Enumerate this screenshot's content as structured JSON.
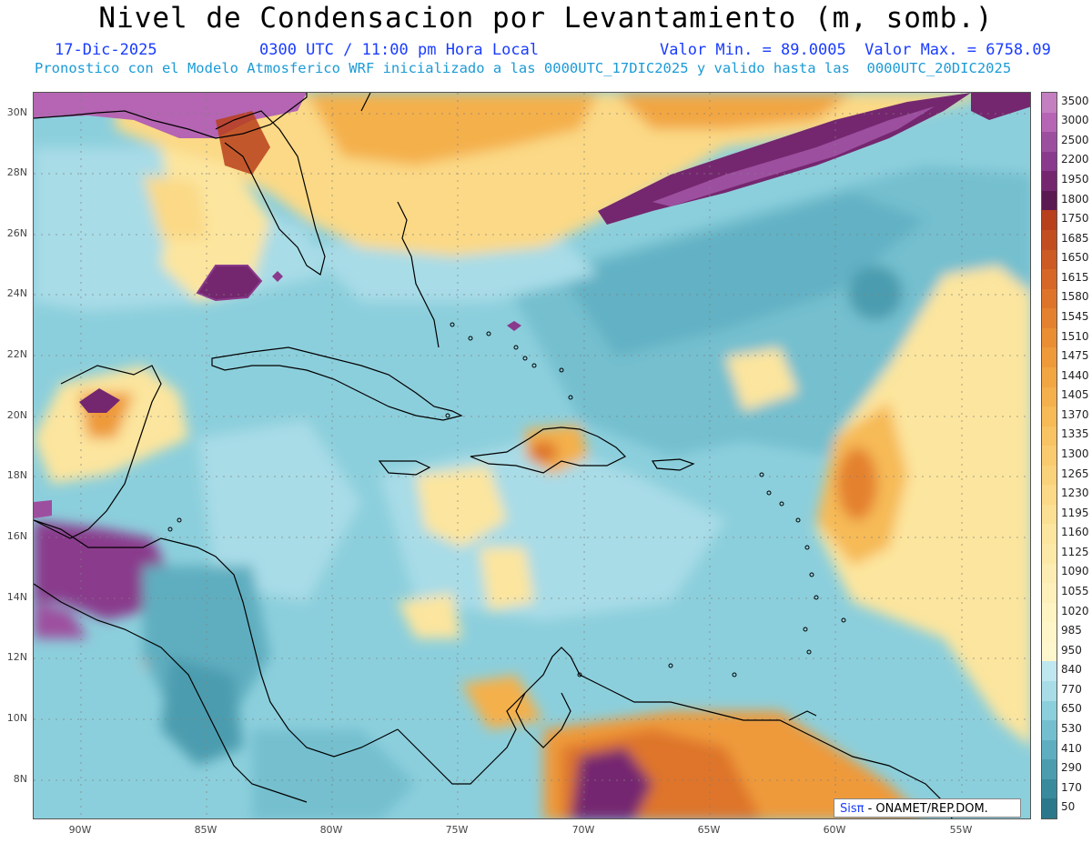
{
  "header": {
    "title": "Nivel de Condensacion por Levantamiento (m, somb.)",
    "date": "17-Dic-2025",
    "valid_time": "0300 UTC / 11:00 pm Hora Local",
    "min_max": "Valor Min. = 89.0005  Valor Max. = 6758.09",
    "subtitle": "Pronostico con el Modelo Atmosferico WRF inicializado a las 0000UTC_17DIC2025 y valido hasta las  0000UTC_20DIC2025"
  },
  "axes": {
    "lat_labels": [
      "30N",
      "28N",
      "26N",
      "24N",
      "22N",
      "20N",
      "18N",
      "16N",
      "14N",
      "12N",
      "10N",
      "8N"
    ],
    "lon_labels": [
      "90W",
      "85W",
      "80W",
      "75W",
      "70W",
      "65W",
      "60W",
      "55W"
    ]
  },
  "colorbar": {
    "labels": [
      "3500",
      "3000",
      "2500",
      "2200",
      "1950",
      "1800",
      "1750",
      "1685",
      "1650",
      "1615",
      "1580",
      "1545",
      "1510",
      "1475",
      "1440",
      "1405",
      "1370",
      "1335",
      "1300",
      "1265",
      "1230",
      "1195",
      "1160",
      "1125",
      "1090",
      "1055",
      "1020",
      "985",
      "950",
      "840",
      "770",
      "650",
      "530",
      "410",
      "290",
      "170",
      "50"
    ],
    "colors": [
      "#c47fc0",
      "#b565b3",
      "#9d4f9f",
      "#8a3a8c",
      "#74276f",
      "#5c1a52",
      "#b8401c",
      "#c24d20",
      "#cc5a22",
      "#d66726",
      "#de742a",
      "#e4812e",
      "#ea8e34",
      "#ee9a3a",
      "#f2a642",
      "#f4b04c",
      "#f6ba56",
      "#f8c362",
      "#f9cb6e",
      "#fad27a",
      "#fbd986",
      "#fbdf92",
      "#fce59e",
      "#fce9a8",
      "#fdedb2",
      "#fdf0ba",
      "#fef3c2",
      "#fef5c8",
      "#fef6cd",
      "#bfe7ef",
      "#a8dce7",
      "#8ccfdc",
      "#74bfcf",
      "#5eaec0",
      "#4b9caf",
      "#3a8a9d",
      "#2b788a"
    ]
  },
  "credit": {
    "brand": "Sisπ",
    "text": " - ONAMET/REP.DOM."
  }
}
